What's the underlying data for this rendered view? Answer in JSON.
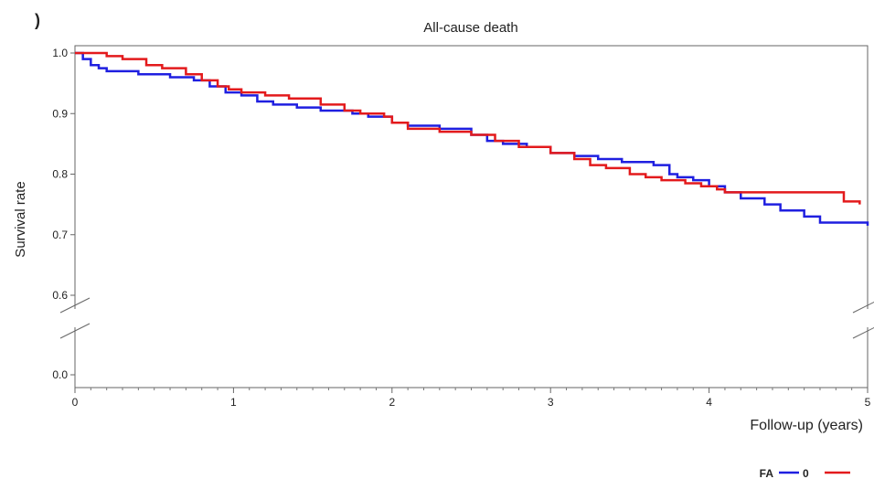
{
  "panel_mark": ")",
  "chart_data": {
    "type": "line",
    "title": "All-cause death",
    "xlabel": "Follow-up (years)",
    "ylabel": "Survival rate",
    "xlim": [
      0,
      5
    ],
    "x_ticks": [
      0,
      1,
      2,
      3,
      4,
      5
    ],
    "x_tick_labels": [
      "0",
      "1",
      "2",
      "3",
      "4",
      "5"
    ],
    "y_ticks": [
      0.6,
      0.7,
      0.8,
      0.9,
      1.0
    ],
    "y_tick_labels": [
      "0.6",
      "0.7",
      "0.8",
      "0.9",
      "1.0"
    ],
    "y_axis_break": true,
    "y_break_tick": 0.0,
    "y_break_tick_label": "0.0",
    "grid": false,
    "legend": {
      "title": "FA",
      "placement": "bottom-right",
      "entries": [
        {
          "label": "0",
          "color": "#1f1fe0"
        },
        {
          "label": "",
          "color": "#e31a1c"
        }
      ]
    },
    "series": [
      {
        "name": "0",
        "color": "#1f1fe0",
        "x": [
          0,
          0.05,
          0.1,
          0.15,
          0.2,
          0.4,
          0.6,
          0.75,
          0.85,
          0.95,
          1.05,
          1.15,
          1.25,
          1.4,
          1.55,
          1.75,
          1.85,
          1.95,
          2.0,
          2.1,
          2.3,
          2.5,
          2.6,
          2.7,
          2.85,
          3.0,
          3.15,
          3.3,
          3.45,
          3.55,
          3.65,
          3.75,
          3.8,
          3.9,
          4.0,
          4.1,
          4.2,
          4.35,
          4.45,
          4.6,
          4.7,
          5.0
        ],
        "y": [
          1.0,
          0.99,
          0.98,
          0.975,
          0.97,
          0.965,
          0.96,
          0.955,
          0.945,
          0.935,
          0.93,
          0.92,
          0.915,
          0.91,
          0.905,
          0.9,
          0.895,
          0.895,
          0.885,
          0.88,
          0.875,
          0.865,
          0.855,
          0.85,
          0.845,
          0.835,
          0.83,
          0.825,
          0.82,
          0.82,
          0.815,
          0.8,
          0.795,
          0.79,
          0.78,
          0.77,
          0.76,
          0.75,
          0.74,
          0.73,
          0.72,
          0.715
        ]
      },
      {
        "name": "",
        "color": "#e31a1c",
        "x": [
          0,
          0.2,
          0.3,
          0.45,
          0.55,
          0.7,
          0.8,
          0.9,
          0.97,
          1.05,
          1.2,
          1.35,
          1.55,
          1.7,
          1.8,
          1.95,
          2.0,
          2.1,
          2.3,
          2.5,
          2.65,
          2.8,
          3.0,
          3.15,
          3.25,
          3.35,
          3.5,
          3.6,
          3.7,
          3.85,
          3.95,
          4.05,
          4.1,
          4.3,
          4.5,
          4.7,
          4.85,
          4.95
        ],
        "y": [
          1.0,
          0.995,
          0.99,
          0.98,
          0.975,
          0.965,
          0.955,
          0.945,
          0.94,
          0.935,
          0.93,
          0.925,
          0.915,
          0.905,
          0.9,
          0.895,
          0.885,
          0.875,
          0.87,
          0.865,
          0.855,
          0.845,
          0.835,
          0.825,
          0.815,
          0.81,
          0.8,
          0.795,
          0.79,
          0.785,
          0.78,
          0.775,
          0.77,
          0.77,
          0.77,
          0.77,
          0.755,
          0.75
        ]
      }
    ]
  }
}
